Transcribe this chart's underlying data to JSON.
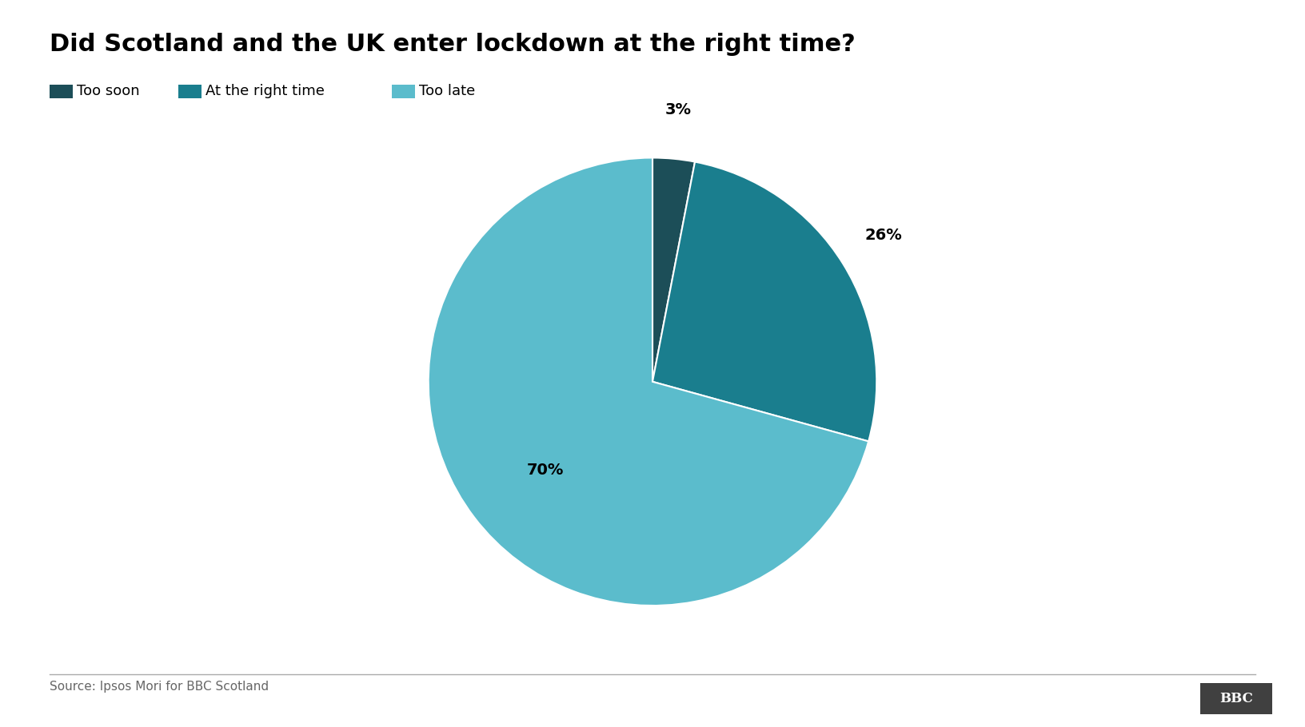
{
  "title": "Did Scotland and the UK enter lockdown at the right time?",
  "title_fontsize": 22,
  "title_fontweight": "bold",
  "legend_labels": [
    "Too soon",
    "At the right time",
    "Too late"
  ],
  "legend_colors": [
    "#1c4e58",
    "#1a7e8e",
    "#5bbccc"
  ],
  "slices": [
    3,
    26,
    70
  ],
  "slice_colors": [
    "#1c4e58",
    "#1a7e8e",
    "#5bbccc"
  ],
  "slice_labels": [
    "3%",
    "26%",
    "70%"
  ],
  "source_text": "Source: Ipsos Mori for BBC Scotland",
  "bbc_text": "BBC",
  "background_color": "#ffffff",
  "text_color": "#000000",
  "label_fontsize": 14,
  "label_fontweight": "bold",
  "startangle": 90
}
